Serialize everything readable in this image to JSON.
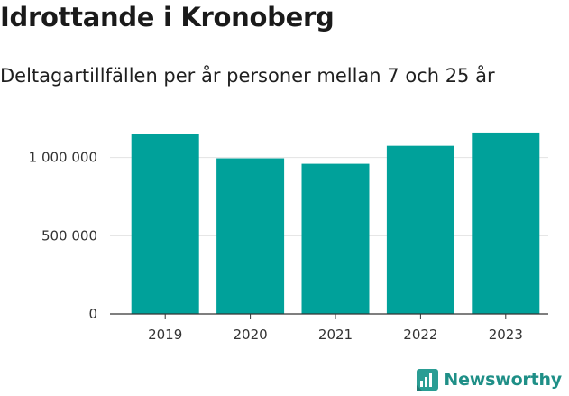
{
  "title": "Idrottande i Kronoberg",
  "subtitle": "Deltagartillfällen per år personer mellan 7 och 25 år",
  "brand": {
    "name": "Newsworthy",
    "icon": "bar-chart-logo-icon",
    "color": "#2a9d94"
  },
  "chart_data": {
    "type": "bar",
    "categories": [
      "2019",
      "2020",
      "2021",
      "2022",
      "2023"
    ],
    "values": [
      1150000,
      995000,
      960000,
      1075000,
      1160000
    ],
    "ylim": [
      0,
      1200000
    ],
    "yticks": [
      0,
      500000,
      1000000
    ],
    "ytick_labels": [
      "0",
      "500 000",
      "1 000 000"
    ],
    "bar_color": "#00a19a",
    "grid": true
  }
}
